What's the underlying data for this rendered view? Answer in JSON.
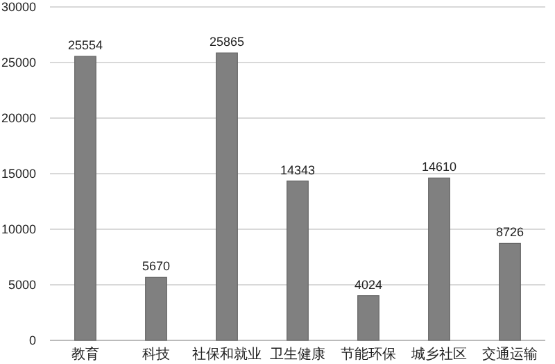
{
  "chart_data": {
    "type": "bar",
    "categories": [
      "教育",
      "科技",
      "社保和就业",
      "卫生健康",
      "节能环保",
      "城乡社区",
      "交通运输"
    ],
    "values": [
      25554,
      5670,
      25865,
      14343,
      4024,
      14610,
      8726
    ],
    "color": "#808080",
    "ylim": [
      0,
      30000
    ],
    "yticks": [
      0,
      5000,
      10000,
      15000,
      20000,
      25000,
      30000
    ],
    "grid": "y",
    "data_labels": true
  }
}
